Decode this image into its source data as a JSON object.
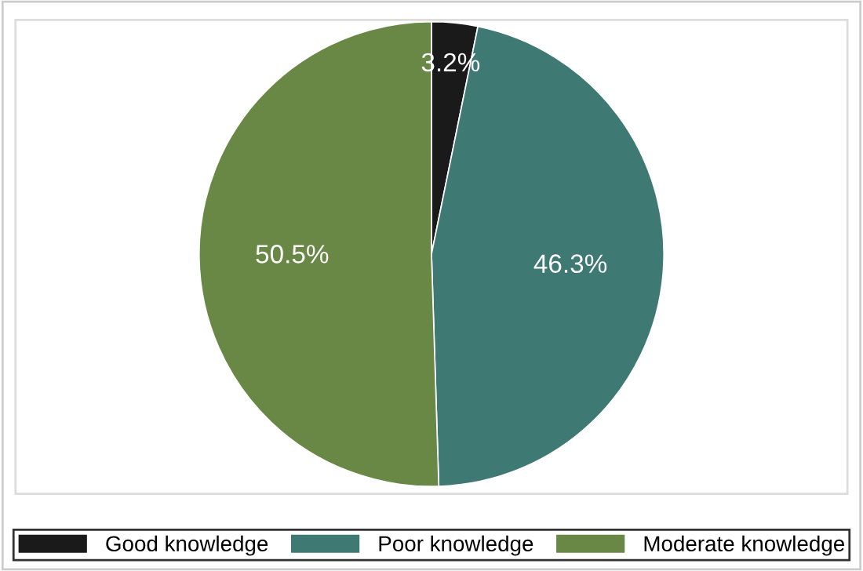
{
  "chart_data": {
    "type": "pie",
    "categories": [
      "Good knowledge",
      "Poor knowledge",
      "Moderate knowledge"
    ],
    "values": [
      3.2,
      46.3,
      50.5
    ],
    "colors": [
      "#1a1a1a",
      "#3e7a73",
      "#6a8845"
    ],
    "value_labels": [
      "3.2%",
      "46.3%",
      "50.5%"
    ],
    "legend": "bottom"
  }
}
